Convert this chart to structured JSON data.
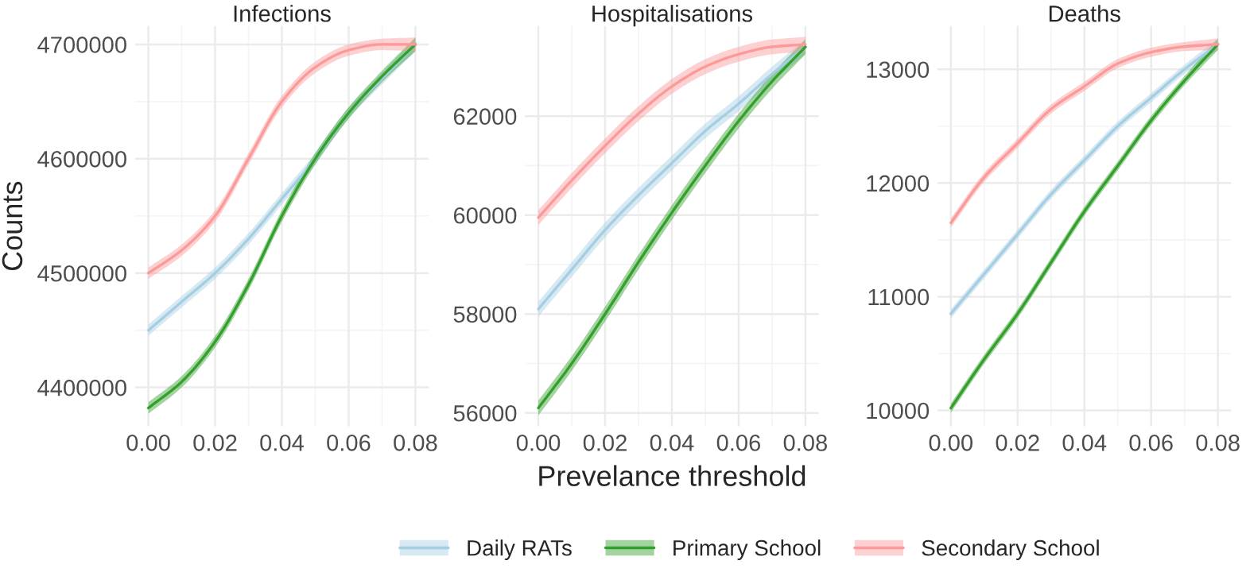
{
  "chart_data": [
    {
      "type": "line",
      "title": "Infections",
      "ylabel": "Counts",
      "x": [
        0,
        0.01,
        0.02,
        0.03,
        0.04,
        0.05,
        0.06,
        0.07,
        0.08
      ],
      "xlim": [
        -0.004,
        0.084
      ],
      "xticks": [
        {
          "value": 0,
          "label": "0.00"
        },
        {
          "value": 0.02,
          "label": "0.02"
        },
        {
          "value": 0.04,
          "label": "0.04"
        },
        {
          "value": 0.06,
          "label": "0.06"
        },
        {
          "value": 0.08,
          "label": "0.08"
        }
      ],
      "ylim": [
        4366000,
        4716000
      ],
      "yticks": [
        4400000,
        4500000,
        4600000,
        4700000
      ],
      "grid": true,
      "line_style": "solid",
      "marker": "none",
      "legend": "bottom",
      "series": [
        {
          "name": "Daily RATs",
          "color": "#a6cee3",
          "values": [
            4450000,
            4475000,
            4500000,
            4530000,
            4565000,
            4600000,
            4640000,
            4670000,
            4700000
          ],
          "lower": [
            4445000,
            4470000,
            4495000,
            4525000,
            4560000,
            4595000,
            4635000,
            4665000,
            4694000
          ],
          "upper": [
            4455000,
            4480000,
            4505000,
            4535000,
            4570000,
            4605000,
            4645000,
            4675000,
            4706000
          ]
        },
        {
          "name": "Primary School",
          "color": "#33a02c",
          "values": [
            4382000,
            4405000,
            4440000,
            4490000,
            4550000,
            4600000,
            4640000,
            4672000,
            4700000
          ],
          "lower": [
            4377000,
            4400000,
            4435000,
            4485000,
            4545000,
            4595000,
            4635000,
            4667000,
            4694000
          ],
          "upper": [
            4387000,
            4410000,
            4445000,
            4495000,
            4555000,
            4605000,
            4645000,
            4677000,
            4706000
          ]
        },
        {
          "name": "Secondary School",
          "color": "#fb9a99",
          "values": [
            4500000,
            4520000,
            4550000,
            4600000,
            4650000,
            4680000,
            4695000,
            4700000,
            4700000
          ],
          "lower": [
            4495000,
            4515000,
            4545000,
            4595000,
            4645000,
            4675000,
            4690000,
            4695000,
            4694000
          ],
          "upper": [
            4505000,
            4525000,
            4555000,
            4605000,
            4655000,
            4685000,
            4700000,
            4705000,
            4706000
          ]
        }
      ]
    },
    {
      "type": "line",
      "title": "Hospitalisations",
      "xlabel": "Prevelance threshold",
      "x": [
        0,
        0.01,
        0.02,
        0.03,
        0.04,
        0.05,
        0.06,
        0.07,
        0.08
      ],
      "xlim": [
        -0.004,
        0.084
      ],
      "xticks": [
        {
          "value": 0,
          "label": "0.00"
        },
        {
          "value": 0.02,
          "label": "0.02"
        },
        {
          "value": 0.04,
          "label": "0.04"
        },
        {
          "value": 0.06,
          "label": "0.06"
        },
        {
          "value": 0.08,
          "label": "0.08"
        }
      ],
      "ylim": [
        55730,
        63820
      ],
      "yticks": [
        56000,
        58000,
        60000,
        62000
      ],
      "grid": true,
      "line_style": "solid",
      "marker": "none",
      "series": [
        {
          "color": "#a6cee3",
          "values": [
            58100,
            58900,
            59700,
            60400,
            61050,
            61700,
            62250,
            62850,
            63400
          ],
          "lower": [
            57950,
            58750,
            59550,
            60250,
            60900,
            61550,
            62100,
            62700,
            63250
          ],
          "upper": [
            58250,
            59050,
            59850,
            60550,
            61200,
            61850,
            62400,
            63000,
            63550
          ]
        },
        {
          "color": "#33a02c",
          "values": [
            56100,
            57000,
            58000,
            59050,
            60050,
            61000,
            61900,
            62700,
            63400
          ],
          "lower": [
            55950,
            56850,
            57850,
            58900,
            59900,
            60850,
            61750,
            62550,
            63250
          ],
          "upper": [
            56250,
            57150,
            58150,
            59200,
            60200,
            61150,
            62050,
            62850,
            63550
          ]
        },
        {
          "color": "#fb9a99",
          "values": [
            59950,
            60700,
            61400,
            62050,
            62600,
            63000,
            63250,
            63400,
            63450
          ],
          "lower": [
            59800,
            60550,
            61250,
            61900,
            62450,
            62850,
            63100,
            63250,
            63300
          ],
          "upper": [
            60100,
            60850,
            61550,
            62200,
            62750,
            63150,
            63400,
            63550,
            63600
          ]
        }
      ]
    },
    {
      "type": "line",
      "title": "Deaths",
      "x": [
        0,
        0.01,
        0.02,
        0.03,
        0.04,
        0.05,
        0.06,
        0.07,
        0.08
      ],
      "xlim": [
        -0.004,
        0.084
      ],
      "xticks": [
        {
          "value": 0,
          "label": "0.00"
        },
        {
          "value": 0.02,
          "label": "0.02"
        },
        {
          "value": 0.04,
          "label": "0.04"
        },
        {
          "value": 0.06,
          "label": "0.06"
        },
        {
          "value": 0.08,
          "label": "0.08"
        }
      ],
      "ylim": [
        9860,
        13380
      ],
      "yticks": [
        10000,
        11000,
        12000,
        13000
      ],
      "grid": true,
      "line_style": "solid",
      "marker": "none",
      "series": [
        {
          "color": "#a6cee3",
          "values": [
            10850,
            11200,
            11550,
            11900,
            12200,
            12500,
            12750,
            13000,
            13220
          ],
          "lower": [
            10810,
            11160,
            11510,
            11860,
            12160,
            12460,
            12710,
            12960,
            13170
          ],
          "upper": [
            10890,
            11240,
            11590,
            11940,
            12240,
            12540,
            12790,
            13040,
            13270
          ]
        },
        {
          "color": "#33a02c",
          "values": [
            10020,
            10450,
            10850,
            11300,
            11750,
            12150,
            12550,
            12900,
            13220
          ],
          "lower": [
            9980,
            10410,
            10810,
            11260,
            11710,
            12110,
            12510,
            12860,
            13170
          ],
          "upper": [
            10060,
            10490,
            10890,
            11340,
            11790,
            12190,
            12590,
            12940,
            13270
          ]
        },
        {
          "color": "#fb9a99",
          "values": [
            11650,
            12050,
            12350,
            12650,
            12850,
            13050,
            13150,
            13200,
            13220
          ],
          "lower": [
            11610,
            12010,
            12310,
            12610,
            12810,
            13010,
            13110,
            13160,
            13170
          ],
          "upper": [
            11690,
            12090,
            12390,
            12690,
            12890,
            13090,
            13190,
            13240,
            13270
          ]
        }
      ]
    }
  ]
}
